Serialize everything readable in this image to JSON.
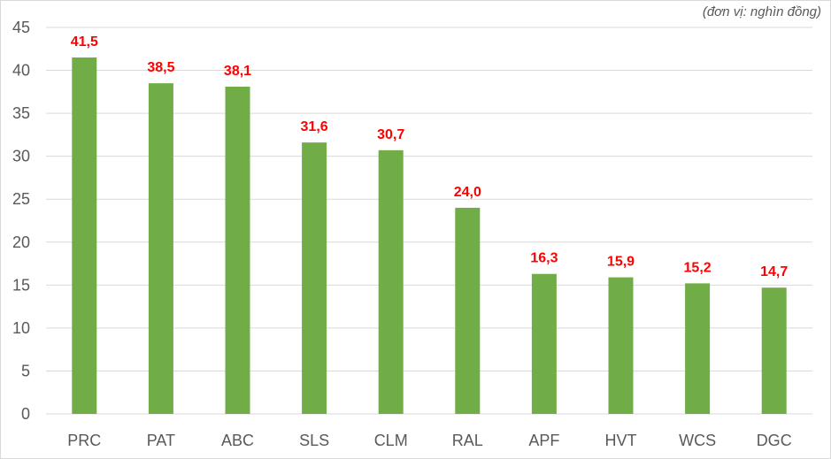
{
  "unit_note": "(đơn vị: nghìn đồng)",
  "colors": {
    "bar": "#70ad47",
    "data_label": "#ff0000",
    "grid": "#d9d9d9",
    "axis_text": "#595959"
  },
  "chart_data": {
    "type": "bar",
    "categories": [
      "PRC",
      "PAT",
      "ABC",
      "SLS",
      "CLM",
      "RAL",
      "APF",
      "HVT",
      "WCS",
      "DGC"
    ],
    "values": [
      41.5,
      38.5,
      38.1,
      31.6,
      30.7,
      24.0,
      16.3,
      15.9,
      15.2,
      14.7
    ],
    "data_labels": [
      "41,5",
      "38,5",
      "38,1",
      "31,6",
      "30,7",
      "24,0",
      "16,3",
      "15,9",
      "15,2",
      "14,7"
    ],
    "title": "",
    "xlabel": "",
    "ylabel": "",
    "ylim": [
      0,
      45
    ],
    "yticks": [
      0,
      5,
      10,
      15,
      20,
      25,
      30,
      35,
      40,
      45
    ],
    "grid": true,
    "legend": "none"
  }
}
